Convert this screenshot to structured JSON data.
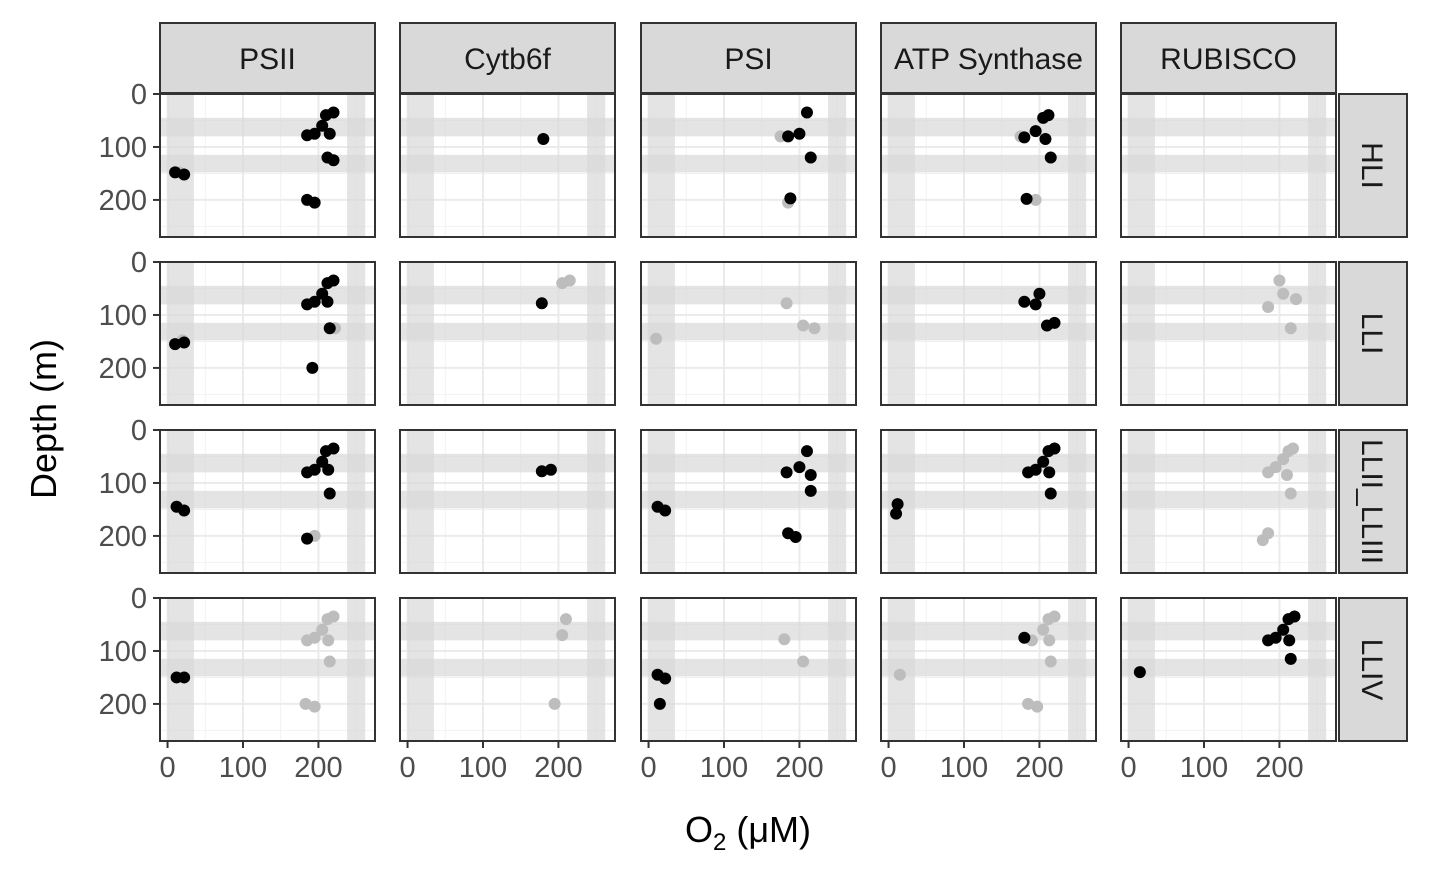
{
  "chart_data": {
    "type": "scatter",
    "facet_columns": [
      "PSII",
      "Cytb6f",
      "PSI",
      "ATP Synthase",
      "RUBISCO"
    ],
    "facet_rows": [
      "HLI",
      "LLI",
      "LLII_LLIII",
      "LLIV"
    ],
    "xlabel": {
      "main": "O",
      "sub": "2",
      "units": " (μM)"
    },
    "ylabel": "Depth (m)",
    "xlim": [
      -10,
      275
    ],
    "ylim": [
      0,
      270
    ],
    "y_reversed": true,
    "x_ticks": [
      0,
      100,
      200
    ],
    "x_tick_labels": [
      "0",
      "100",
      "200"
    ],
    "y_ticks": [
      0,
      100,
      200
    ],
    "y_tick_labels": [
      "0",
      "100",
      "200"
    ],
    "grid": true,
    "colors": {
      "dark": "#000000",
      "light": "#bdbdbd",
      "band": "#d9d9d9",
      "strip_fill": "#d9d9d9",
      "border": "#333333"
    },
    "shaded_bands": {
      "x": [
        [
          0,
          35
        ],
        [
          238,
          262
        ]
      ],
      "y": [
        [
          45,
          80
        ],
        [
          115,
          148
        ]
      ]
    },
    "clusters": [
      {
        "r": 0,
        "c": 0,
        "k": "d",
        "x": 10,
        "y": 148
      },
      {
        "r": 0,
        "c": 0,
        "k": "d",
        "x": 22,
        "y": 152
      },
      {
        "r": 0,
        "c": 0,
        "k": "l",
        "x": 15,
        "y": 148
      },
      {
        "r": 0,
        "c": 0,
        "k": "d",
        "x": 185,
        "y": 78
      },
      {
        "r": 0,
        "c": 0,
        "k": "d",
        "x": 195,
        "y": 75
      },
      {
        "r": 0,
        "c": 0,
        "k": "d",
        "x": 205,
        "y": 60
      },
      {
        "r": 0,
        "c": 0,
        "k": "d",
        "x": 210,
        "y": 40
      },
      {
        "r": 0,
        "c": 0,
        "k": "d",
        "x": 220,
        "y": 35
      },
      {
        "r": 0,
        "c": 0,
        "k": "d",
        "x": 215,
        "y": 75
      },
      {
        "r": 0,
        "c": 0,
        "k": "d",
        "x": 212,
        "y": 120
      },
      {
        "r": 0,
        "c": 0,
        "k": "d",
        "x": 220,
        "y": 125
      },
      {
        "r": 0,
        "c": 0,
        "k": "d",
        "x": 185,
        "y": 200
      },
      {
        "r": 0,
        "c": 0,
        "k": "d",
        "x": 195,
        "y": 205
      },
      {
        "r": 0,
        "c": 1,
        "k": "d",
        "x": 180,
        "y": 85
      },
      {
        "r": 0,
        "c": 2,
        "k": "l",
        "x": 185,
        "y": 205
      },
      {
        "r": 0,
        "c": 2,
        "k": "l",
        "x": 175,
        "y": 80
      },
      {
        "r": 0,
        "c": 2,
        "k": "d",
        "x": 185,
        "y": 80
      },
      {
        "r": 0,
        "c": 2,
        "k": "d",
        "x": 200,
        "y": 75
      },
      {
        "r": 0,
        "c": 2,
        "k": "d",
        "x": 210,
        "y": 35
      },
      {
        "r": 0,
        "c": 2,
        "k": "d",
        "x": 215,
        "y": 120
      },
      {
        "r": 0,
        "c": 2,
        "k": "d",
        "x": 188,
        "y": 197
      },
      {
        "r": 0,
        "c": 3,
        "k": "l",
        "x": 175,
        "y": 80
      },
      {
        "r": 0,
        "c": 3,
        "k": "l",
        "x": 195,
        "y": 200
      },
      {
        "r": 0,
        "c": 3,
        "k": "d",
        "x": 180,
        "y": 82
      },
      {
        "r": 0,
        "c": 3,
        "k": "d",
        "x": 195,
        "y": 70
      },
      {
        "r": 0,
        "c": 3,
        "k": "d",
        "x": 205,
        "y": 45
      },
      {
        "r": 0,
        "c": 3,
        "k": "d",
        "x": 212,
        "y": 40
      },
      {
        "r": 0,
        "c": 3,
        "k": "d",
        "x": 208,
        "y": 85
      },
      {
        "r": 0,
        "c": 3,
        "k": "d",
        "x": 215,
        "y": 120
      },
      {
        "r": 0,
        "c": 3,
        "k": "d",
        "x": 183,
        "y": 198
      },
      {
        "r": 1,
        "c": 0,
        "k": "l",
        "x": 20,
        "y": 148
      },
      {
        "r": 1,
        "c": 0,
        "k": "d",
        "x": 10,
        "y": 155
      },
      {
        "r": 1,
        "c": 0,
        "k": "d",
        "x": 22,
        "y": 152
      },
      {
        "r": 1,
        "c": 0,
        "k": "l",
        "x": 222,
        "y": 125
      },
      {
        "r": 1,
        "c": 0,
        "k": "d",
        "x": 185,
        "y": 80
      },
      {
        "r": 1,
        "c": 0,
        "k": "d",
        "x": 195,
        "y": 75
      },
      {
        "r": 1,
        "c": 0,
        "k": "d",
        "x": 205,
        "y": 60
      },
      {
        "r": 1,
        "c": 0,
        "k": "d",
        "x": 212,
        "y": 40
      },
      {
        "r": 1,
        "c": 0,
        "k": "d",
        "x": 220,
        "y": 35
      },
      {
        "r": 1,
        "c": 0,
        "k": "d",
        "x": 212,
        "y": 75
      },
      {
        "r": 1,
        "c": 0,
        "k": "d",
        "x": 215,
        "y": 125
      },
      {
        "r": 1,
        "c": 0,
        "k": "d",
        "x": 192,
        "y": 200
      },
      {
        "r": 1,
        "c": 1,
        "k": "l",
        "x": 205,
        "y": 40
      },
      {
        "r": 1,
        "c": 1,
        "k": "l",
        "x": 215,
        "y": 35
      },
      {
        "r": 1,
        "c": 1,
        "k": "d",
        "x": 178,
        "y": 78
      },
      {
        "r": 1,
        "c": 2,
        "k": "l",
        "x": 10,
        "y": 145
      },
      {
        "r": 1,
        "c": 2,
        "k": "l",
        "x": 183,
        "y": 78
      },
      {
        "r": 1,
        "c": 2,
        "k": "l",
        "x": 205,
        "y": 120
      },
      {
        "r": 1,
        "c": 2,
        "k": "l",
        "x": 220,
        "y": 125
      },
      {
        "r": 1,
        "c": 3,
        "k": "d",
        "x": 180,
        "y": 75
      },
      {
        "r": 1,
        "c": 3,
        "k": "d",
        "x": 195,
        "y": 80
      },
      {
        "r": 1,
        "c": 3,
        "k": "d",
        "x": 200,
        "y": 60
      },
      {
        "r": 1,
        "c": 3,
        "k": "d",
        "x": 210,
        "y": 120
      },
      {
        "r": 1,
        "c": 3,
        "k": "d",
        "x": 220,
        "y": 115
      },
      {
        "r": 1,
        "c": 4,
        "k": "l",
        "x": 185,
        "y": 85
      },
      {
        "r": 1,
        "c": 4,
        "k": "l",
        "x": 200,
        "y": 35
      },
      {
        "r": 1,
        "c": 4,
        "k": "l",
        "x": 205,
        "y": 60
      },
      {
        "r": 1,
        "c": 4,
        "k": "l",
        "x": 222,
        "y": 70
      },
      {
        "r": 1,
        "c": 4,
        "k": "l",
        "x": 215,
        "y": 125
      },
      {
        "r": 2,
        "c": 0,
        "k": "d",
        "x": 12,
        "y": 145
      },
      {
        "r": 2,
        "c": 0,
        "k": "d",
        "x": 22,
        "y": 152
      },
      {
        "r": 2,
        "c": 0,
        "k": "d",
        "x": 185,
        "y": 80
      },
      {
        "r": 2,
        "c": 0,
        "k": "d",
        "x": 195,
        "y": 75
      },
      {
        "r": 2,
        "c": 0,
        "k": "d",
        "x": 205,
        "y": 60
      },
      {
        "r": 2,
        "c": 0,
        "k": "d",
        "x": 210,
        "y": 40
      },
      {
        "r": 2,
        "c": 0,
        "k": "d",
        "x": 220,
        "y": 35
      },
      {
        "r": 2,
        "c": 0,
        "k": "d",
        "x": 213,
        "y": 75
      },
      {
        "r": 2,
        "c": 0,
        "k": "d",
        "x": 215,
        "y": 120
      },
      {
        "r": 2,
        "c": 0,
        "k": "l",
        "x": 195,
        "y": 200
      },
      {
        "r": 2,
        "c": 0,
        "k": "d",
        "x": 185,
        "y": 205
      },
      {
        "r": 2,
        "c": 1,
        "k": "d",
        "x": 178,
        "y": 78
      },
      {
        "r": 2,
        "c": 1,
        "k": "d",
        "x": 190,
        "y": 75
      },
      {
        "r": 2,
        "c": 2,
        "k": "d",
        "x": 12,
        "y": 145
      },
      {
        "r": 2,
        "c": 2,
        "k": "d",
        "x": 22,
        "y": 152
      },
      {
        "r": 2,
        "c": 2,
        "k": "d",
        "x": 183,
        "y": 80
      },
      {
        "r": 2,
        "c": 2,
        "k": "d",
        "x": 200,
        "y": 70
      },
      {
        "r": 2,
        "c": 2,
        "k": "d",
        "x": 210,
        "y": 40
      },
      {
        "r": 2,
        "c": 2,
        "k": "d",
        "x": 215,
        "y": 85
      },
      {
        "r": 2,
        "c": 2,
        "k": "d",
        "x": 215,
        "y": 115
      },
      {
        "r": 2,
        "c": 2,
        "k": "d",
        "x": 185,
        "y": 195
      },
      {
        "r": 2,
        "c": 2,
        "k": "d",
        "x": 195,
        "y": 202
      },
      {
        "r": 2,
        "c": 3,
        "k": "d",
        "x": 12,
        "y": 140
      },
      {
        "r": 2,
        "c": 3,
        "k": "d",
        "x": 10,
        "y": 158
      },
      {
        "r": 2,
        "c": 3,
        "k": "d",
        "x": 185,
        "y": 80
      },
      {
        "r": 2,
        "c": 3,
        "k": "d",
        "x": 195,
        "y": 75
      },
      {
        "r": 2,
        "c": 3,
        "k": "d",
        "x": 205,
        "y": 60
      },
      {
        "r": 2,
        "c": 3,
        "k": "d",
        "x": 212,
        "y": 40
      },
      {
        "r": 2,
        "c": 3,
        "k": "d",
        "x": 220,
        "y": 35
      },
      {
        "r": 2,
        "c": 3,
        "k": "d",
        "x": 213,
        "y": 80
      },
      {
        "r": 2,
        "c": 3,
        "k": "d",
        "x": 215,
        "y": 120
      },
      {
        "r": 2,
        "c": 4,
        "k": "l",
        "x": 185,
        "y": 80
      },
      {
        "r": 2,
        "c": 4,
        "k": "l",
        "x": 195,
        "y": 70
      },
      {
        "r": 2,
        "c": 4,
        "k": "l",
        "x": 205,
        "y": 55
      },
      {
        "r": 2,
        "c": 4,
        "k": "l",
        "x": 212,
        "y": 40
      },
      {
        "r": 2,
        "c": 4,
        "k": "l",
        "x": 218,
        "y": 35
      },
      {
        "r": 2,
        "c": 4,
        "k": "l",
        "x": 210,
        "y": 85
      },
      {
        "r": 2,
        "c": 4,
        "k": "l",
        "x": 215,
        "y": 120
      },
      {
        "r": 2,
        "c": 4,
        "k": "l",
        "x": 185,
        "y": 195
      },
      {
        "r": 2,
        "c": 4,
        "k": "l",
        "x": 178,
        "y": 208
      },
      {
        "r": 3,
        "c": 0,
        "k": "d",
        "x": 12,
        "y": 150
      },
      {
        "r": 3,
        "c": 0,
        "k": "d",
        "x": 22,
        "y": 150
      },
      {
        "r": 3,
        "c": 0,
        "k": "l",
        "x": 185,
        "y": 80
      },
      {
        "r": 3,
        "c": 0,
        "k": "l",
        "x": 195,
        "y": 75
      },
      {
        "r": 3,
        "c": 0,
        "k": "l",
        "x": 205,
        "y": 60
      },
      {
        "r": 3,
        "c": 0,
        "k": "l",
        "x": 212,
        "y": 40
      },
      {
        "r": 3,
        "c": 0,
        "k": "l",
        "x": 220,
        "y": 35
      },
      {
        "r": 3,
        "c": 0,
        "k": "l",
        "x": 213,
        "y": 80
      },
      {
        "r": 3,
        "c": 0,
        "k": "l",
        "x": 215,
        "y": 120
      },
      {
        "r": 3,
        "c": 0,
        "k": "l",
        "x": 183,
        "y": 200
      },
      {
        "r": 3,
        "c": 0,
        "k": "l",
        "x": 195,
        "y": 205
      },
      {
        "r": 3,
        "c": 1,
        "k": "l",
        "x": 210,
        "y": 40
      },
      {
        "r": 3,
        "c": 1,
        "k": "l",
        "x": 205,
        "y": 70
      },
      {
        "r": 3,
        "c": 1,
        "k": "l",
        "x": 195,
        "y": 200
      },
      {
        "r": 3,
        "c": 2,
        "k": "d",
        "x": 12,
        "y": 145
      },
      {
        "r": 3,
        "c": 2,
        "k": "d",
        "x": 22,
        "y": 152
      },
      {
        "r": 3,
        "c": 2,
        "k": "d",
        "x": 15,
        "y": 200
      },
      {
        "r": 3,
        "c": 2,
        "k": "l",
        "x": 180,
        "y": 78
      },
      {
        "r": 3,
        "c": 2,
        "k": "l",
        "x": 205,
        "y": 120
      },
      {
        "r": 3,
        "c": 3,
        "k": "l",
        "x": 15,
        "y": 145
      },
      {
        "r": 3,
        "c": 3,
        "k": "d",
        "x": 180,
        "y": 75
      },
      {
        "r": 3,
        "c": 3,
        "k": "l",
        "x": 190,
        "y": 80
      },
      {
        "r": 3,
        "c": 3,
        "k": "l",
        "x": 205,
        "y": 60
      },
      {
        "r": 3,
        "c": 3,
        "k": "l",
        "x": 212,
        "y": 40
      },
      {
        "r": 3,
        "c": 3,
        "k": "l",
        "x": 220,
        "y": 35
      },
      {
        "r": 3,
        "c": 3,
        "k": "l",
        "x": 213,
        "y": 80
      },
      {
        "r": 3,
        "c": 3,
        "k": "l",
        "x": 215,
        "y": 120
      },
      {
        "r": 3,
        "c": 3,
        "k": "l",
        "x": 185,
        "y": 200
      },
      {
        "r": 3,
        "c": 3,
        "k": "l",
        "x": 197,
        "y": 205
      },
      {
        "r": 3,
        "c": 4,
        "k": "d",
        "x": 15,
        "y": 140
      },
      {
        "r": 3,
        "c": 4,
        "k": "d",
        "x": 185,
        "y": 80
      },
      {
        "r": 3,
        "c": 4,
        "k": "d",
        "x": 195,
        "y": 75
      },
      {
        "r": 3,
        "c": 4,
        "k": "d",
        "x": 205,
        "y": 60
      },
      {
        "r": 3,
        "c": 4,
        "k": "d",
        "x": 212,
        "y": 40
      },
      {
        "r": 3,
        "c": 4,
        "k": "d",
        "x": 220,
        "y": 35
      },
      {
        "r": 3,
        "c": 4,
        "k": "d",
        "x": 213,
        "y": 80
      },
      {
        "r": 3,
        "c": 4,
        "k": "d",
        "x": 215,
        "y": 115
      }
    ]
  }
}
